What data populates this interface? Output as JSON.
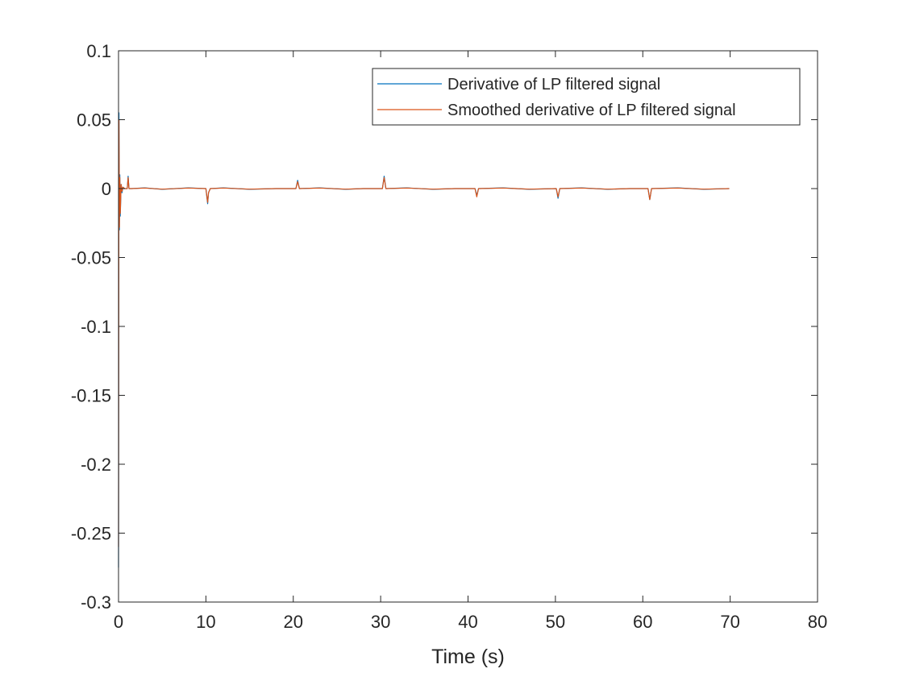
{
  "chart_data": {
    "type": "line",
    "title": "",
    "xlabel": "Time (s)",
    "ylabel": "",
    "xlim": [
      0,
      80
    ],
    "ylim": [
      -0.3,
      0.1
    ],
    "xticks": [
      0,
      10,
      20,
      30,
      40,
      50,
      60,
      70,
      80
    ],
    "xtick_labels": [
      "0",
      "10",
      "20",
      "30",
      "40",
      "50",
      "60",
      "70",
      "80"
    ],
    "yticks": [
      -0.3,
      -0.25,
      -0.2,
      -0.15,
      -0.1,
      -0.05,
      0,
      0.05,
      0.1
    ],
    "ytick_labels": [
      "-0.3",
      "-0.25",
      "-0.2",
      "-0.15",
      "-0.1",
      "-0.05",
      "0",
      "0.05",
      "0.1"
    ],
    "grid": false,
    "legend_position": "top-right",
    "series": [
      {
        "name": "Derivative of LP filtered signal",
        "color": "#0072BD",
        "x": [
          0,
          0.05,
          0.1,
          0.15,
          0.2,
          0.3,
          0.4,
          0.5,
          0.7,
          1.0,
          1.1,
          1.2,
          1.5,
          3,
          5,
          8,
          10.0,
          10.2,
          10.3,
          10.5,
          12,
          15,
          18,
          20.3,
          20.5,
          20.7,
          23,
          26,
          28,
          30.2,
          30.4,
          30.6,
          33,
          36,
          38.5,
          40.8,
          41.0,
          41.2,
          44,
          47,
          50.1,
          50.3,
          50.5,
          53,
          56,
          58.5,
          60.6,
          60.8,
          61.0,
          64,
          67,
          69.9
        ],
        "y": [
          -0.275,
          0.055,
          -0.03,
          0.01,
          -0.02,
          0.003,
          -0.003,
          0.001,
          0.0,
          0.0,
          0.009,
          0.0,
          0.0,
          0.0005,
          -0.0005,
          0.0005,
          0.0,
          -0.011,
          -0.003,
          0.0,
          0.0005,
          -0.0005,
          0.0,
          0.0,
          0.006,
          0.0,
          0.0005,
          -0.0005,
          0.0,
          0.0,
          0.009,
          0.0,
          0.0005,
          -0.0005,
          0.0,
          0.0,
          -0.005,
          0.0,
          0.0005,
          -0.0005,
          0.0,
          -0.007,
          0.0,
          0.0005,
          -0.0005,
          0.0,
          0.0,
          -0.008,
          0.0,
          0.0005,
          -0.0005,
          0.0
        ]
      },
      {
        "name": "Smoothed derivative of LP filtered signal",
        "color": "#D95319",
        "x": [
          0,
          0.05,
          0.1,
          0.15,
          0.2,
          0.3,
          0.4,
          0.5,
          0.7,
          1.0,
          1.1,
          1.2,
          1.5,
          3,
          5,
          8,
          10.0,
          10.2,
          10.3,
          10.5,
          12,
          15,
          18,
          20.3,
          20.5,
          20.7,
          23,
          26,
          28,
          30.2,
          30.4,
          30.6,
          33,
          36,
          38.5,
          40.8,
          41.0,
          41.2,
          44,
          47,
          50.1,
          50.3,
          50.5,
          53,
          56,
          58.5,
          60.6,
          60.8,
          61.0,
          64,
          67,
          69.9
        ],
        "y": [
          -0.26,
          0.05,
          -0.028,
          0.008,
          -0.018,
          0.003,
          -0.002,
          0.001,
          0.0,
          0.0,
          0.008,
          0.0,
          0.0,
          0.0004,
          -0.0004,
          0.0004,
          0.0,
          -0.01,
          -0.003,
          0.0,
          0.0004,
          -0.0004,
          0.0,
          0.0,
          0.005,
          0.0,
          0.0004,
          -0.0004,
          0.0,
          0.0,
          0.008,
          0.0,
          0.0004,
          -0.0004,
          0.0,
          0.0,
          -0.006,
          0.0,
          0.0004,
          -0.0004,
          0.0,
          -0.006,
          0.0,
          0.0004,
          -0.0004,
          0.0,
          0.0,
          -0.008,
          0.0,
          0.0004,
          -0.0004,
          0.0
        ]
      }
    ]
  }
}
